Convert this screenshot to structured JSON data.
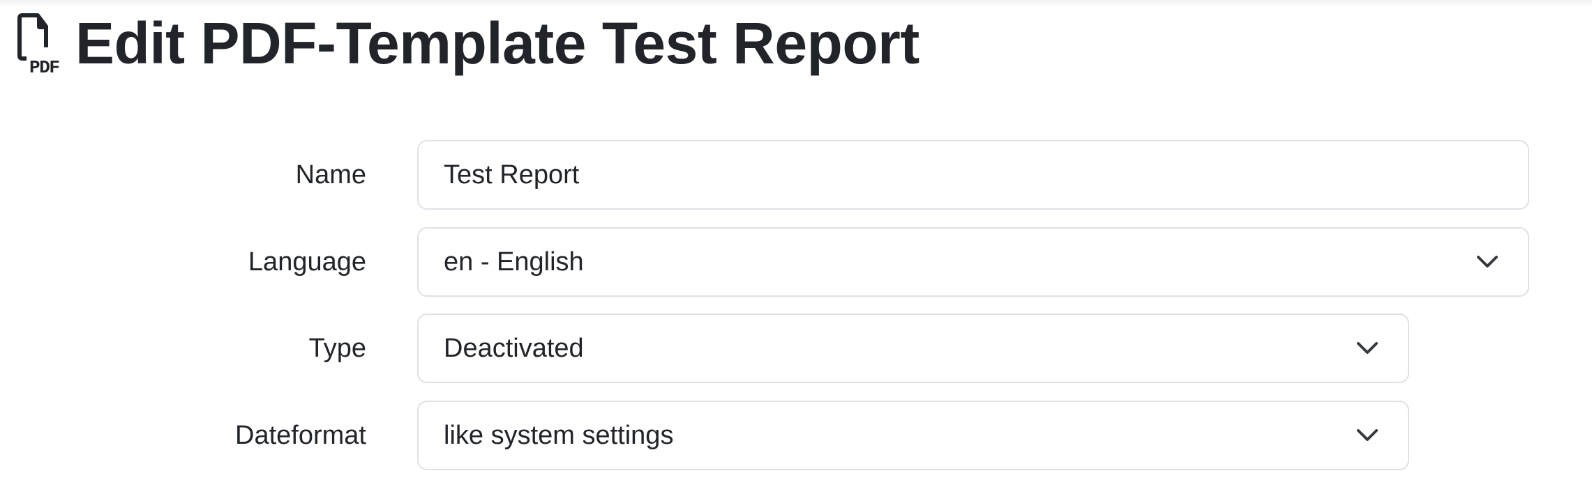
{
  "header": {
    "title": "Edit PDF-Template Test Report",
    "icon": "file-pdf-icon"
  },
  "form": {
    "name": {
      "label": "Name",
      "value": "Test Report"
    },
    "language": {
      "label": "Language",
      "value": "en - English"
    },
    "type": {
      "label": "Type",
      "value": "Deactivated"
    },
    "dateformat": {
      "label": "Dateformat",
      "value": "like system settings"
    }
  }
}
